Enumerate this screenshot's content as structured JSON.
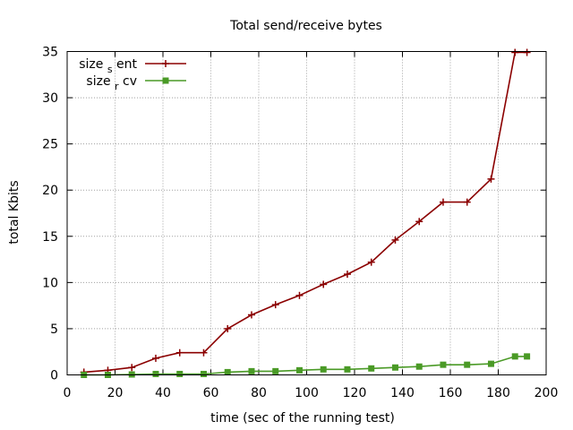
{
  "chart_data": {
    "type": "line",
    "title": "Total send/receive bytes",
    "xlabel": "time (sec of the running test)",
    "ylabel": "total Kbits",
    "xlim": [
      0,
      200
    ],
    "ylim": [
      0,
      35
    ],
    "xticks": [
      0,
      20,
      40,
      60,
      80,
      100,
      120,
      140,
      160,
      180,
      200
    ],
    "yticks": [
      0,
      5,
      10,
      15,
      20,
      25,
      30,
      35
    ],
    "grid": true,
    "legend_position": "top-left",
    "series": [
      {
        "name_parts": [
          "size",
          "s",
          "ent"
        ],
        "color": "#8b0000",
        "marker": "plus",
        "x": [
          7,
          17,
          27,
          37,
          47,
          57,
          67,
          77,
          87,
          97,
          107,
          117,
          127,
          137,
          147,
          157,
          167,
          177,
          187,
          192
        ],
        "y": [
          0.3,
          0.5,
          0.8,
          1.8,
          2.4,
          2.4,
          5.0,
          6.5,
          7.6,
          8.6,
          9.8,
          10.9,
          12.2,
          14.6,
          16.6,
          18.7,
          18.7,
          21.2,
          34.9,
          34.9
        ]
      },
      {
        "name_parts": [
          "size",
          "r",
          "cv"
        ],
        "color": "#4a9a26",
        "marker": "filled-square",
        "x": [
          7,
          17,
          27,
          37,
          47,
          57,
          67,
          77,
          87,
          97,
          107,
          117,
          127,
          137,
          147,
          157,
          167,
          177,
          187,
          192
        ],
        "y": [
          0.0,
          0.0,
          0.05,
          0.1,
          0.1,
          0.1,
          0.3,
          0.4,
          0.4,
          0.5,
          0.6,
          0.6,
          0.7,
          0.8,
          0.9,
          1.1,
          1.1,
          1.2,
          2.0,
          2.0
        ]
      }
    ]
  }
}
